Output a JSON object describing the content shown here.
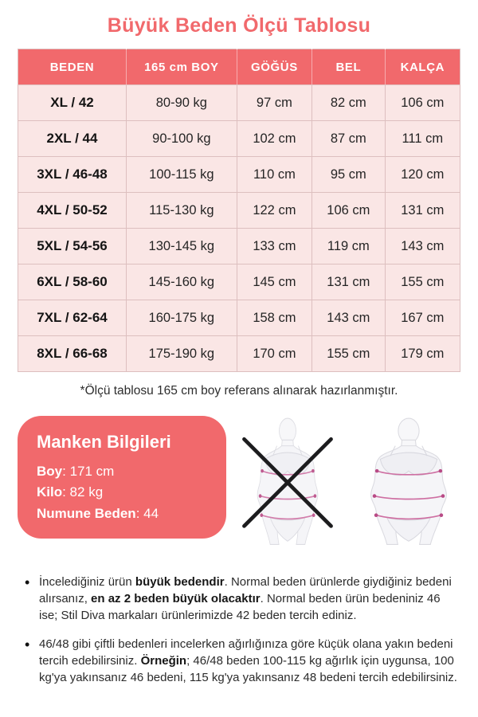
{
  "page": {
    "title": "Büyük Beden Ölçü Tablosu"
  },
  "colors": {
    "accent": "#F1696C",
    "row_background": "#FAE6E5",
    "text_dark": "#2B2B2B",
    "measure_line_pink": "#CE6FA2",
    "x_mark_black": "#1C1C1E"
  },
  "table": {
    "headers": [
      "BEDEN",
      "165 cm BOY",
      "GÖĞÜS",
      "BEL",
      "KALÇA"
    ],
    "rows": [
      [
        "XL / 42",
        "80-90 kg",
        "97 cm",
        "82 cm",
        "106 cm"
      ],
      [
        "2XL / 44",
        "90-100 kg",
        "102 cm",
        "87 cm",
        "111 cm"
      ],
      [
        "3XL / 46-48",
        "100-115 kg",
        "110 cm",
        "95 cm",
        "120 cm"
      ],
      [
        "4XL / 50-52",
        "115-130 kg",
        "122 cm",
        "106 cm",
        "131 cm"
      ],
      [
        "5XL / 54-56",
        "130-145 kg",
        "133 cm",
        "119 cm",
        "143 cm"
      ],
      [
        "6XL / 58-60",
        "145-160 kg",
        "145 cm",
        "131 cm",
        "155 cm"
      ],
      [
        "7XL / 62-64",
        "160-175 kg",
        "158 cm",
        "143 cm",
        "167 cm"
      ],
      [
        "8XL / 66-68",
        "175-190 kg",
        "170 cm",
        "155 cm",
        "179 cm"
      ]
    ],
    "footnote": "*Ölçü tablosu 165 cm boy referans alınarak hazırlanmıştır."
  },
  "model_info": {
    "title": "Manken Bilgileri",
    "lines": [
      {
        "label": "Boy",
        "value": ": 171 cm"
      },
      {
        "label": "Kilo",
        "value": ": 82 kg"
      },
      {
        "label": "Numune Beden",
        "value": ": 44"
      }
    ]
  },
  "figures": {
    "wrong_figure": "slim-body-figure-crossed-out",
    "correct_figure": "plus-size-body-figure"
  },
  "notes": [
    {
      "segments": [
        {
          "text": "İncelediğiniz ürün ",
          "bold": false
        },
        {
          "text": "büyük bedendir",
          "bold": true
        },
        {
          "text": ". Normal beden ürünlerde giydiğiniz bedeni alırsanız, ",
          "bold": false
        },
        {
          "text": "en az 2 beden büyük olacaktır",
          "bold": true
        },
        {
          "text": ". Normal beden ürün bedeniniz 46 ise; Stil Diva markaları ürünlerimizde 42 beden tercih ediniz.",
          "bold": false
        }
      ]
    },
    {
      "segments": [
        {
          "text": "46/48 gibi çiftli bedenleri incelerken ağırlığınıza göre küçük olana yakın bedeni tercih edebilirsiniz. ",
          "bold": false
        },
        {
          "text": "Örneğin",
          "bold": true
        },
        {
          "text": "; 46/48 beden 100-115 kg ağırlık için uygunsa, 100 kg'ya yakınsanız 46 bedeni, 115 kg'ya yakınsanız 48 bedeni tercih edebilirsiniz.",
          "bold": false
        }
      ]
    }
  ]
}
